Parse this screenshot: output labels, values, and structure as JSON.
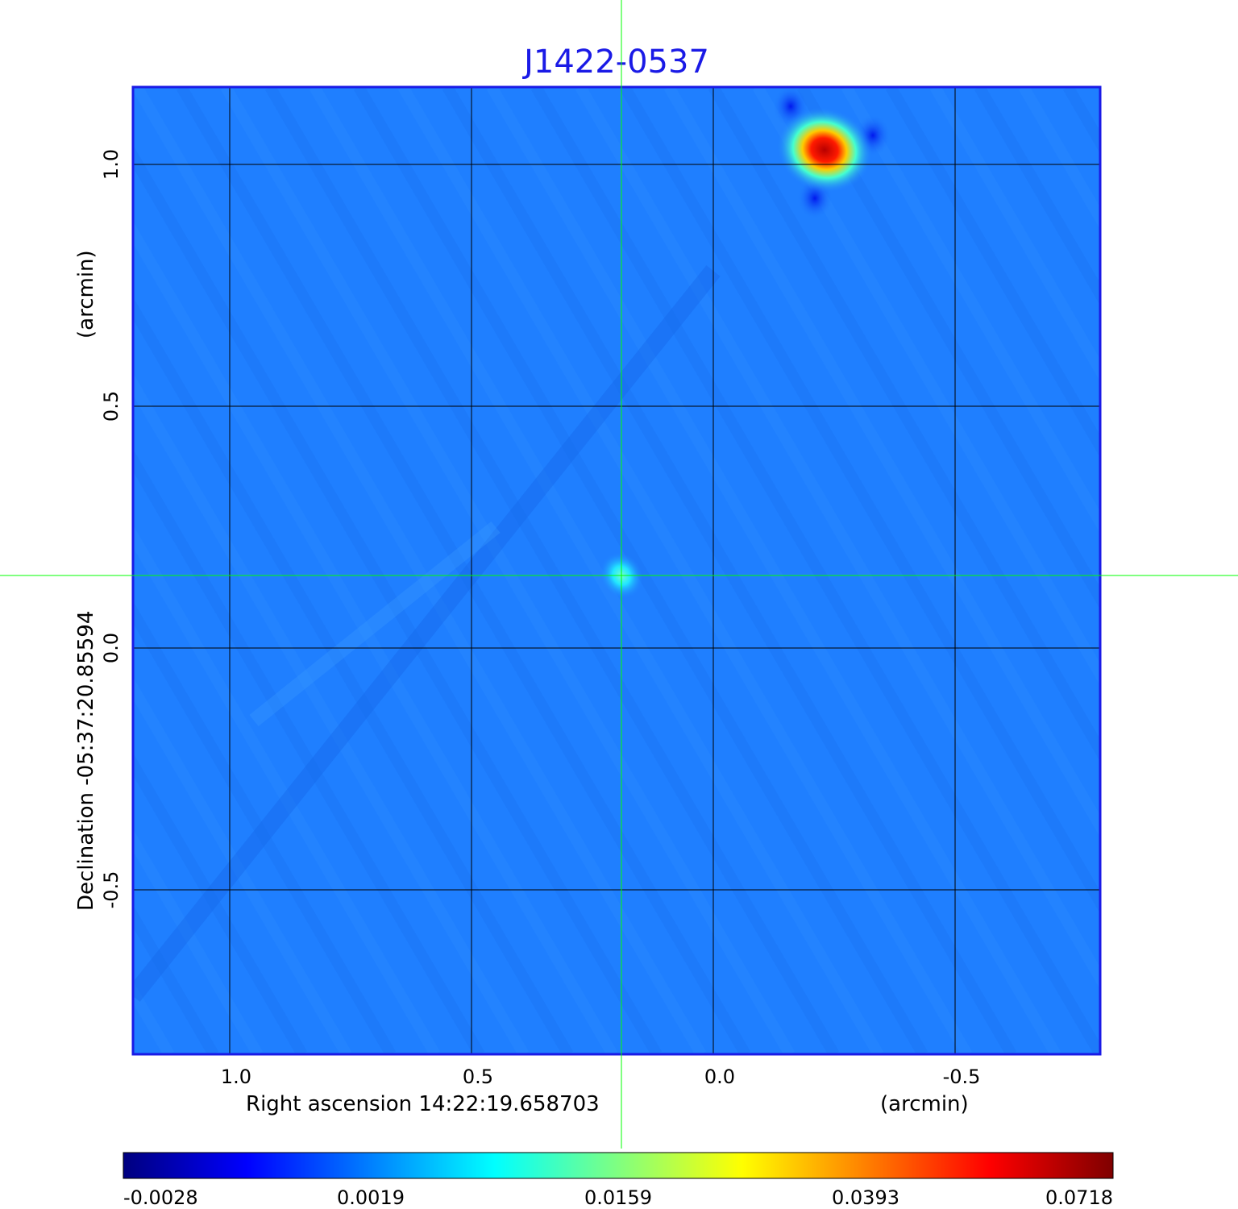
{
  "chart_data": {
    "type": "heatmap",
    "title": "J1422-0537",
    "xlabel": "Right ascension  14:22:19.658703",
    "xunit": "(arcmin)",
    "ylabel": "Declination  -05:37:20.85594",
    "yunit": "(arcmin)",
    "xlim": [
      1.2,
      -0.8
    ],
    "ylim": [
      -0.84,
      1.16
    ],
    "x_ticks": [
      {
        "value": 1.0,
        "label": "1.0"
      },
      {
        "value": 0.5,
        "label": "0.5"
      },
      {
        "value": 0.0,
        "label": "0.0"
      },
      {
        "value": -0.5,
        "label": "-0.5"
      }
    ],
    "y_ticks": [
      {
        "value": 1.0,
        "label": "1.0"
      },
      {
        "value": 0.5,
        "label": "0.5"
      },
      {
        "value": 0.0,
        "label": "0.0"
      },
      {
        "value": -0.5,
        "label": "-0.5"
      }
    ],
    "grid": true,
    "crosshair": {
      "x": 0.19,
      "y": 0.15
    },
    "colormap": [
      "#00007f",
      "#0000ff",
      "#0080ff",
      "#00ffff",
      "#80ff80",
      "#ffff00",
      "#ff8000",
      "#ff0000",
      "#7f0000"
    ],
    "colorbar_ticks": [
      "-0.0028",
      "0.0019",
      "0.0159",
      "0.0393",
      "0.0718"
    ],
    "background_value": 0.0019,
    "sources": [
      {
        "x": 0.19,
        "y": 0.15,
        "peak": 0.015
      },
      {
        "x": -0.23,
        "y": 1.03,
        "peak": 0.0718
      }
    ],
    "negative_spots": [
      {
        "x": -0.33,
        "y": 1.06
      },
      {
        "x": -0.21,
        "y": 0.93
      },
      {
        "x": -0.16,
        "y": 1.12
      }
    ]
  },
  "colors": {
    "title": "#1a1ae6",
    "frame": "#1a1ae6",
    "grid": "#000000",
    "crosshair": "#00ff00"
  }
}
